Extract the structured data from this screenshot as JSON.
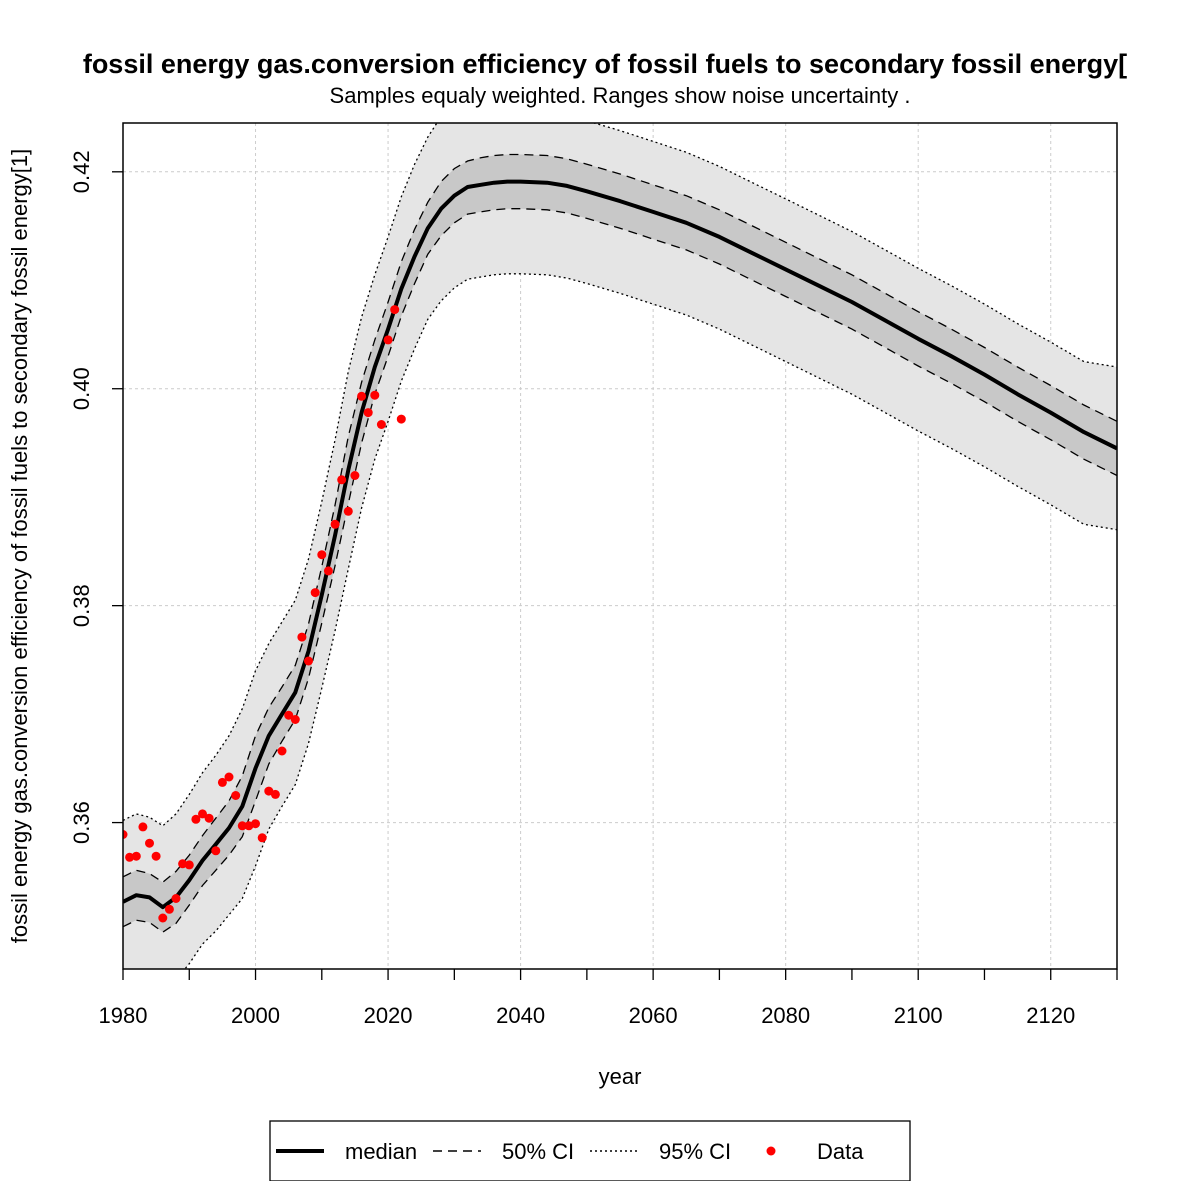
{
  "chart_data": {
    "type": "line",
    "title": "fossil energy gas.conversion efficiency of fossil fuels to secondary fossil energy[",
    "subtitle": "Samples equaly weighted. Ranges show  noise uncertainty .",
    "xlabel": "year",
    "ylabel": "fossil energy gas.conversion efficiency of fossil fuels to secondary fossil energy[1]",
    "xlim": [
      1980,
      2130
    ],
    "ylim": [
      0.3465,
      0.4245
    ],
    "x_ticks": [
      1980,
      2000,
      2020,
      2040,
      2060,
      2080,
      2100,
      2120
    ],
    "x_minor_ticks": [
      1980,
      1990,
      2000,
      2010,
      2020,
      2030,
      2040,
      2050,
      2060,
      2070,
      2080,
      2090,
      2100,
      2110,
      2120,
      2130
    ],
    "y_ticks": [
      0.36,
      0.38,
      0.4,
      0.42
    ],
    "y_tick_labels": [
      "0.36",
      "0.38",
      "0.40",
      "0.42"
    ],
    "grid": true,
    "legend_position": "bottom",
    "legend": [
      "median",
      "50% CI",
      "95% CI",
      "Data"
    ],
    "colors": {
      "median": "#000000",
      "band50": "#c8c8c8",
      "band95": "#e5e5e5",
      "data": "#ff0000",
      "grid": "#cccccc"
    },
    "series": [
      {
        "name": "median",
        "x": [
          1980,
          1982,
          1984,
          1986,
          1988,
          1990,
          1992,
          1994,
          1996,
          1998,
          2000,
          2002,
          2004,
          2006,
          2008,
          2010,
          2012,
          2014,
          2016,
          2018,
          2020,
          2022,
          2024,
          2026,
          2028,
          2030,
          2032,
          2034,
          2036,
          2038,
          2040,
          2044,
          2047,
          2050,
          2055,
          2060,
          2065,
          2070,
          2075,
          2080,
          2085,
          2090,
          2095,
          2100,
          2105,
          2110,
          2115,
          2120,
          2125,
          2130
        ],
        "y": [
          0.3527,
          0.3533,
          0.3531,
          0.3522,
          0.3531,
          0.3547,
          0.3565,
          0.358,
          0.3595,
          0.3615,
          0.365,
          0.368,
          0.37,
          0.372,
          0.3758,
          0.381,
          0.3865,
          0.3925,
          0.3978,
          0.402,
          0.4055,
          0.4092,
          0.4122,
          0.4148,
          0.4166,
          0.4178,
          0.4186,
          0.4188,
          0.419,
          0.4191,
          0.4191,
          0.419,
          0.4187,
          0.4182,
          0.4173,
          0.4163,
          0.4153,
          0.414,
          0.4125,
          0.411,
          0.4095,
          0.408,
          0.4063,
          0.4046,
          0.403,
          0.4013,
          0.3995,
          0.3978,
          0.396,
          0.3945
        ]
      },
      {
        "name": "50% CI",
        "x": [
          1980,
          1982,
          1984,
          1986,
          1988,
          1990,
          1992,
          1994,
          1996,
          1998,
          2000,
          2002,
          2004,
          2006,
          2008,
          2010,
          2012,
          2014,
          2016,
          2018,
          2020,
          2022,
          2024,
          2026,
          2028,
          2030,
          2032,
          2034,
          2036,
          2038,
          2040,
          2044,
          2047,
          2050,
          2055,
          2060,
          2065,
          2070,
          2075,
          2080,
          2085,
          2090,
          2095,
          2100,
          2105,
          2110,
          2115,
          2120,
          2125,
          2130
        ],
        "upper": [
          0.355,
          0.3556,
          0.3553,
          0.3545,
          0.3555,
          0.357,
          0.3588,
          0.3604,
          0.362,
          0.3643,
          0.368,
          0.3706,
          0.3725,
          0.3745,
          0.3783,
          0.3836,
          0.3893,
          0.3956,
          0.4006,
          0.4045,
          0.408,
          0.4117,
          0.4147,
          0.4172,
          0.4191,
          0.4203,
          0.421,
          0.4213,
          0.4215,
          0.4216,
          0.4216,
          0.4215,
          0.4212,
          0.4207,
          0.4198,
          0.4188,
          0.4178,
          0.4165,
          0.415,
          0.4135,
          0.412,
          0.4105,
          0.4088,
          0.4071,
          0.4055,
          0.4038,
          0.402,
          0.4003,
          0.3985,
          0.397
        ],
        "lower": [
          0.3504,
          0.351,
          0.3508,
          0.3499,
          0.3507,
          0.3524,
          0.3542,
          0.3556,
          0.357,
          0.3587,
          0.362,
          0.3654,
          0.3675,
          0.3695,
          0.3733,
          0.3784,
          0.3837,
          0.3894,
          0.395,
          0.3995,
          0.403,
          0.4067,
          0.4097,
          0.4124,
          0.4141,
          0.4153,
          0.4161,
          0.4163,
          0.4165,
          0.4166,
          0.4166,
          0.4165,
          0.4162,
          0.4157,
          0.4148,
          0.4138,
          0.4128,
          0.4115,
          0.41,
          0.4085,
          0.407,
          0.4055,
          0.4038,
          0.4021,
          0.4005,
          0.3988,
          0.397,
          0.3953,
          0.3935,
          0.392
        ]
      },
      {
        "name": "95% CI",
        "x": [
          1980,
          1982,
          1984,
          1986,
          1988,
          1990,
          1992,
          1994,
          1996,
          1998,
          2000,
          2002,
          2004,
          2006,
          2008,
          2010,
          2012,
          2014,
          2016,
          2018,
          2020,
          2022,
          2024,
          2026,
          2028,
          2030,
          2032,
          2034,
          2036,
          2038,
          2040,
          2044,
          2047,
          2050,
          2055,
          2060,
          2065,
          2070,
          2075,
          2080,
          2085,
          2090,
          2095,
          2100,
          2105,
          2110,
          2115,
          2120,
          2125,
          2130
        ],
        "upper": [
          0.3602,
          0.3608,
          0.3605,
          0.3597,
          0.3608,
          0.3626,
          0.3646,
          0.3662,
          0.368,
          0.3705,
          0.374,
          0.3765,
          0.3785,
          0.3805,
          0.3843,
          0.3896,
          0.3953,
          0.4016,
          0.4066,
          0.4105,
          0.414,
          0.4177,
          0.4207,
          0.4232,
          0.4251,
          0.4263,
          0.427,
          0.4273,
          0.4275,
          0.4276,
          0.4276,
          0.4272,
          0.4262,
          0.4247,
          0.4238,
          0.4228,
          0.4218,
          0.4205,
          0.419,
          0.4175,
          0.416,
          0.4145,
          0.4128,
          0.4111,
          0.4095,
          0.4078,
          0.406,
          0.4043,
          0.4025,
          0.402
        ],
        "lower": [
          0.3452,
          0.3458,
          0.3455,
          0.3447,
          0.3455,
          0.347,
          0.3488,
          0.35,
          0.3515,
          0.353,
          0.356,
          0.3594,
          0.3615,
          0.3635,
          0.3673,
          0.3724,
          0.3777,
          0.3834,
          0.389,
          0.3935,
          0.397,
          0.4007,
          0.4037,
          0.4064,
          0.4081,
          0.4093,
          0.4101,
          0.4103,
          0.4105,
          0.4106,
          0.4106,
          0.4105,
          0.4102,
          0.4097,
          0.4088,
          0.4078,
          0.4068,
          0.4055,
          0.404,
          0.4025,
          0.401,
          0.3995,
          0.3978,
          0.3961,
          0.3945,
          0.3928,
          0.391,
          0.3893,
          0.3875,
          0.387
        ]
      },
      {
        "name": "Data",
        "x": [
          1980,
          1981,
          1982,
          1983,
          1984,
          1985,
          1986,
          1987,
          1988,
          1989,
          1990,
          1991,
          1992,
          1993,
          1994,
          1995,
          1996,
          1997,
          1998,
          1999,
          2000,
          2001,
          2002,
          2003,
          2004,
          2005,
          2006,
          2007,
          2008,
          2009,
          2010,
          2011,
          2012,
          2013,
          2014,
          2015,
          2016,
          2017,
          2018,
          2019,
          2020,
          2021,
          2022
        ],
        "y": [
          0.3589,
          0.3568,
          0.3569,
          0.3596,
          0.3581,
          0.3569,
          0.3512,
          0.352,
          0.353,
          0.3562,
          0.3561,
          0.3603,
          0.3608,
          0.3604,
          0.3574,
          0.3637,
          0.3642,
          0.3625,
          0.3597,
          0.3597,
          0.3599,
          0.3586,
          0.3629,
          0.3626,
          0.3666,
          0.3699,
          0.3695,
          0.3771,
          0.3749,
          0.3812,
          0.3847,
          0.3832,
          0.3875,
          0.3916,
          0.3887,
          0.392,
          0.3993,
          0.3978,
          0.3994,
          0.3967,
          0.4045,
          0.4073,
          0.3972
        ]
      }
    ]
  }
}
